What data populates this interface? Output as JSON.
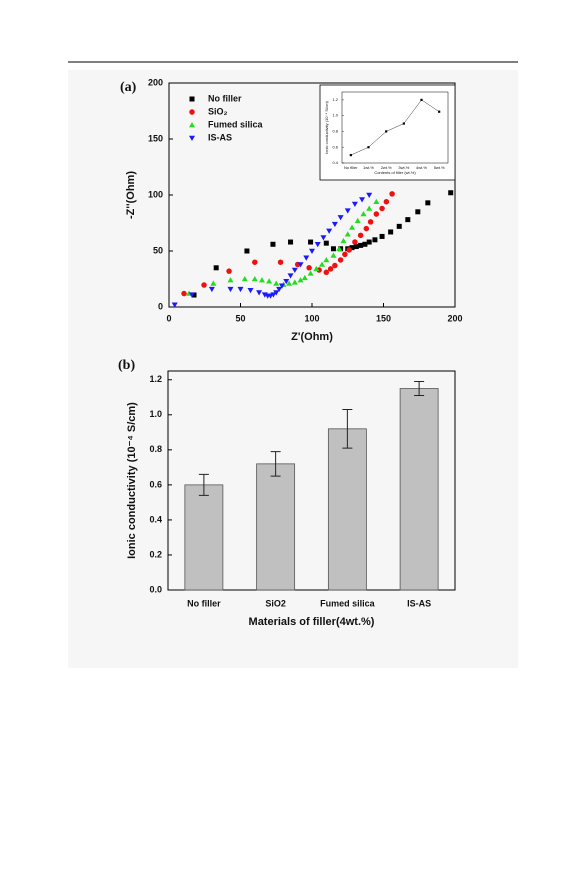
{
  "chart_data": [
    {
      "type": "scatter",
      "label": "(a)",
      "x_label": "Z'(Ohm)",
      "y_label": "-Z''(Ohm)",
      "xlim": [
        0,
        200
      ],
      "ylim": [
        0,
        200
      ],
      "xticks": [
        0,
        50,
        100,
        150,
        200
      ],
      "yticks": [
        0,
        50,
        100,
        150,
        200
      ],
      "series": [
        {
          "name": "No filler",
          "color": "#000000",
          "marker": "square",
          "x": [
            17.5,
            33,
            54.5,
            72.7,
            85,
            99,
            110,
            115,
            120,
            125,
            128,
            131,
            134,
            137,
            140,
            144,
            149,
            155,
            161,
            167,
            174,
            181,
            197
          ],
          "values": [
            10.7,
            35,
            50,
            56,
            58,
            58,
            57,
            52,
            52,
            52,
            53,
            54,
            55,
            56,
            58,
            60,
            63,
            67,
            72,
            78,
            85,
            93,
            102
          ]
        },
        {
          "name": "SiO₂",
          "color": "#ee1111",
          "marker": "circle",
          "x": [
            10.5,
            24.5,
            42,
            60,
            78,
            90,
            98,
            105,
            110,
            113,
            116,
            120,
            123,
            126,
            130,
            134,
            138,
            141,
            145,
            149,
            152,
            156
          ],
          "values": [
            12,
            19.6,
            32,
            40,
            40,
            38,
            35,
            33,
            31,
            34,
            37,
            42,
            47,
            51,
            58,
            64,
            70,
            76,
            83,
            88,
            94,
            101
          ]
        },
        {
          "name": "Fumed silica",
          "color": "#22dd22",
          "marker": "triangle-up",
          "x": [
            14,
            31,
            43,
            53,
            60,
            65,
            70,
            75,
            80,
            84,
            88,
            92,
            95,
            99,
            103,
            107,
            110,
            115,
            119,
            122,
            125,
            128,
            132,
            136,
            140,
            145
          ],
          "values": [
            12,
            21,
            24,
            25,
            25,
            24,
            23,
            21,
            20,
            21,
            22,
            24,
            26,
            30,
            34,
            38,
            42,
            46,
            52,
            59,
            65,
            71,
            77,
            83,
            88,
            94
          ]
        },
        {
          "name": "IS-AS",
          "color": "#1a1aff",
          "marker": "triangle-down",
          "x": [
            4,
            16,
            30,
            43,
            50,
            57,
            63,
            67,
            69,
            71,
            73,
            75,
            77,
            79,
            82,
            85,
            88,
            92,
            96,
            100,
            104,
            108,
            112,
            116,
            120,
            125,
            130,
            135,
            140
          ],
          "values": [
            2,
            11,
            16,
            16,
            16,
            15,
            13,
            11,
            10,
            10,
            11,
            13,
            16,
            19,
            23,
            28,
            33,
            38,
            44,
            50,
            56,
            62,
            68,
            74,
            80,
            86,
            92,
            96,
            100
          ]
        }
      ]
    },
    {
      "type": "line",
      "x_label": "Contents of filler (wt.%)",
      "y_label": "Ionic conductivity (10⁻⁴ S/cm)",
      "categories": [
        "No filler",
        "1wt.%",
        "2wt.%",
        "3wt.%",
        "4wt.%",
        "5wt.%"
      ],
      "values": [
        0.5,
        0.6,
        0.8,
        0.9,
        1.2,
        1.05
      ],
      "color": "#000000",
      "ylim": [
        0.4,
        1.3
      ],
      "yticks": [
        0.4,
        0.6,
        0.8,
        {
          "value": 1,
          "label": "1.0"
        },
        1.2
      ]
    },
    {
      "type": "bar",
      "label": "(b)",
      "x_label": "Materials of filler(4wt.%)",
      "y_label": "Ionic conductivity (10⁻⁴ S/cm)",
      "categories": [
        "No filler",
        "SiO2",
        "Fumed silica",
        "IS-AS"
      ],
      "values": [
        0.6,
        0.72,
        0.92,
        1.15
      ],
      "errors": [
        0.06,
        0.07,
        0.11,
        0.04
      ],
      "color": "#c0c0c0",
      "ylim": [
        0,
        1.25
      ],
      "yticks": [
        {
          "value": 0,
          "label": "0.0"
        },
        0.2,
        0.4,
        0.6,
        0.8,
        {
          "value": 1,
          "label": "1.0"
        },
        1.2
      ]
    }
  ]
}
